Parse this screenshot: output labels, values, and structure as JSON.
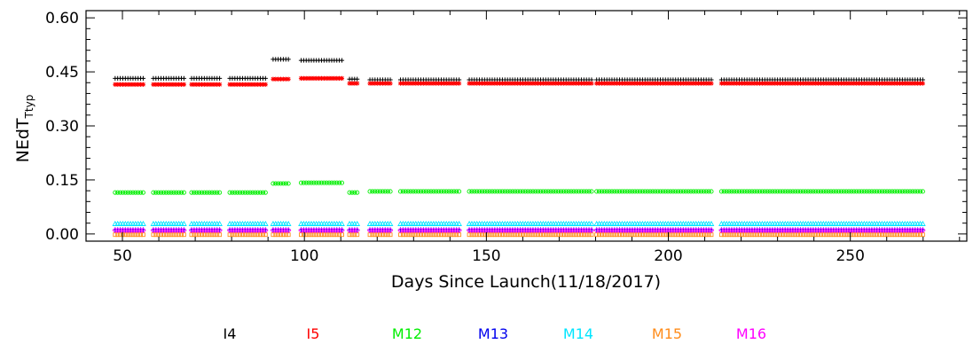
{
  "chart_data": {
    "type": "scatter",
    "title": "",
    "xlabel": "Days Since Launch(11/18/2017)",
    "ylabel_main": "NEdT",
    "ylabel_sub": "Ttyp",
    "xlim": [
      40,
      282
    ],
    "ylim": [
      -0.02,
      0.62
    ],
    "x_ticks": [
      50,
      100,
      150,
      200,
      250
    ],
    "y_ticks": [
      0.0,
      0.15,
      0.3,
      0.45,
      0.6
    ],
    "y_tick_labels": [
      "0.00",
      "0.15",
      "0.30",
      "0.45",
      "0.60"
    ],
    "grid": false,
    "legend_position": "bottom",
    "data_ranges": [
      [
        48,
        56
      ],
      [
        58,
        67
      ],
      [
        69,
        77
      ],
      [
        79,
        90
      ],
      [
        91,
        96
      ],
      [
        99,
        111
      ],
      [
        112,
        115
      ],
      [
        118,
        124
      ],
      [
        126,
        143
      ],
      [
        145,
        179
      ],
      [
        180,
        212
      ],
      [
        214,
        270
      ]
    ],
    "series": [
      {
        "name": "I4",
        "color": "#000000",
        "marker": "plus",
        "line": false,
        "segments": [
          {
            "x": [
              48,
              90
            ],
            "y": 0.432
          },
          {
            "x": [
              91,
              96
            ],
            "y": 0.485
          },
          {
            "x": [
              99,
              111
            ],
            "y": 0.482
          },
          {
            "x": [
              112,
              115
            ],
            "y": 0.43
          },
          {
            "x": [
              118,
              270
            ],
            "y": 0.428
          }
        ]
      },
      {
        "name": "I5",
        "color": "#ff0000",
        "marker": "star",
        "line": false,
        "segments": [
          {
            "x": [
              48,
              90
            ],
            "y": 0.415
          },
          {
            "x": [
              91,
              96
            ],
            "y": 0.43
          },
          {
            "x": [
              99,
              111
            ],
            "y": 0.432
          },
          {
            "x": [
              112,
              115
            ],
            "y": 0.418
          },
          {
            "x": [
              118,
              270
            ],
            "y": 0.418
          }
        ]
      },
      {
        "name": "M12",
        "color": "#00ee00",
        "marker": "circle",
        "line": true,
        "segments": [
          {
            "x": [
              48,
              90
            ],
            "y": 0.115
          },
          {
            "x": [
              91,
              96
            ],
            "y": 0.14
          },
          {
            "x": [
              99,
              111
            ],
            "y": 0.142
          },
          {
            "x": [
              112,
              115
            ],
            "y": 0.115
          },
          {
            "x": [
              118,
              270
            ],
            "y": 0.118
          }
        ]
      },
      {
        "name": "M13",
        "color": "#0000ee",
        "marker": "plus",
        "line": false,
        "segments": [
          {
            "x": [
              48,
              270
            ],
            "y": 0.012
          }
        ]
      },
      {
        "name": "M14",
        "color": "#00e5ff",
        "marker": "triangle",
        "line": false,
        "segments": [
          {
            "x": [
              48,
              270
            ],
            "y": 0.028
          }
        ]
      },
      {
        "name": "M15",
        "color": "#ff8c1a",
        "marker": "square",
        "line": false,
        "segments": [
          {
            "x": [
              48,
              270
            ],
            "y": -0.002
          }
        ]
      },
      {
        "name": "M16",
        "color": "#ff00ff",
        "marker": "diamond",
        "line": false,
        "segments": [
          {
            "x": [
              48,
              270
            ],
            "y": 0.01
          }
        ]
      }
    ]
  }
}
